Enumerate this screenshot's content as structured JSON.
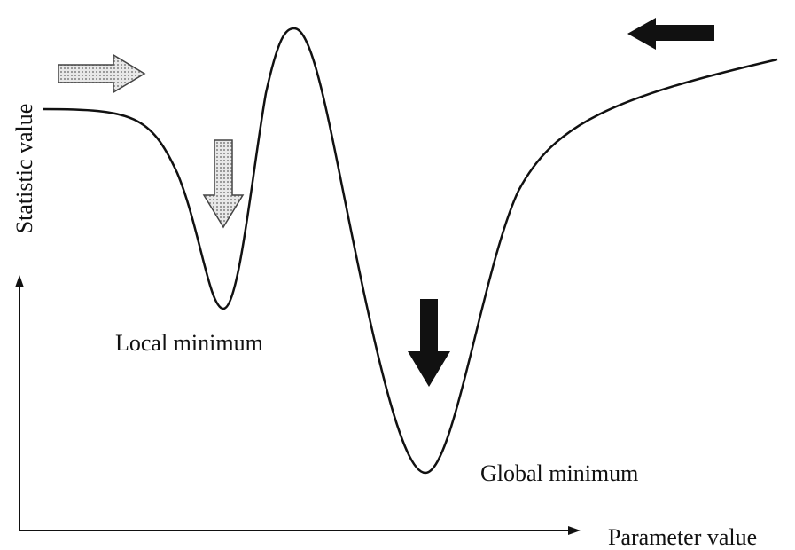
{
  "axes": {
    "y_label": "Statistic value",
    "x_label": "Parameter value"
  },
  "annotations": {
    "local": "Local minimum",
    "global": "Global minimum"
  }
}
